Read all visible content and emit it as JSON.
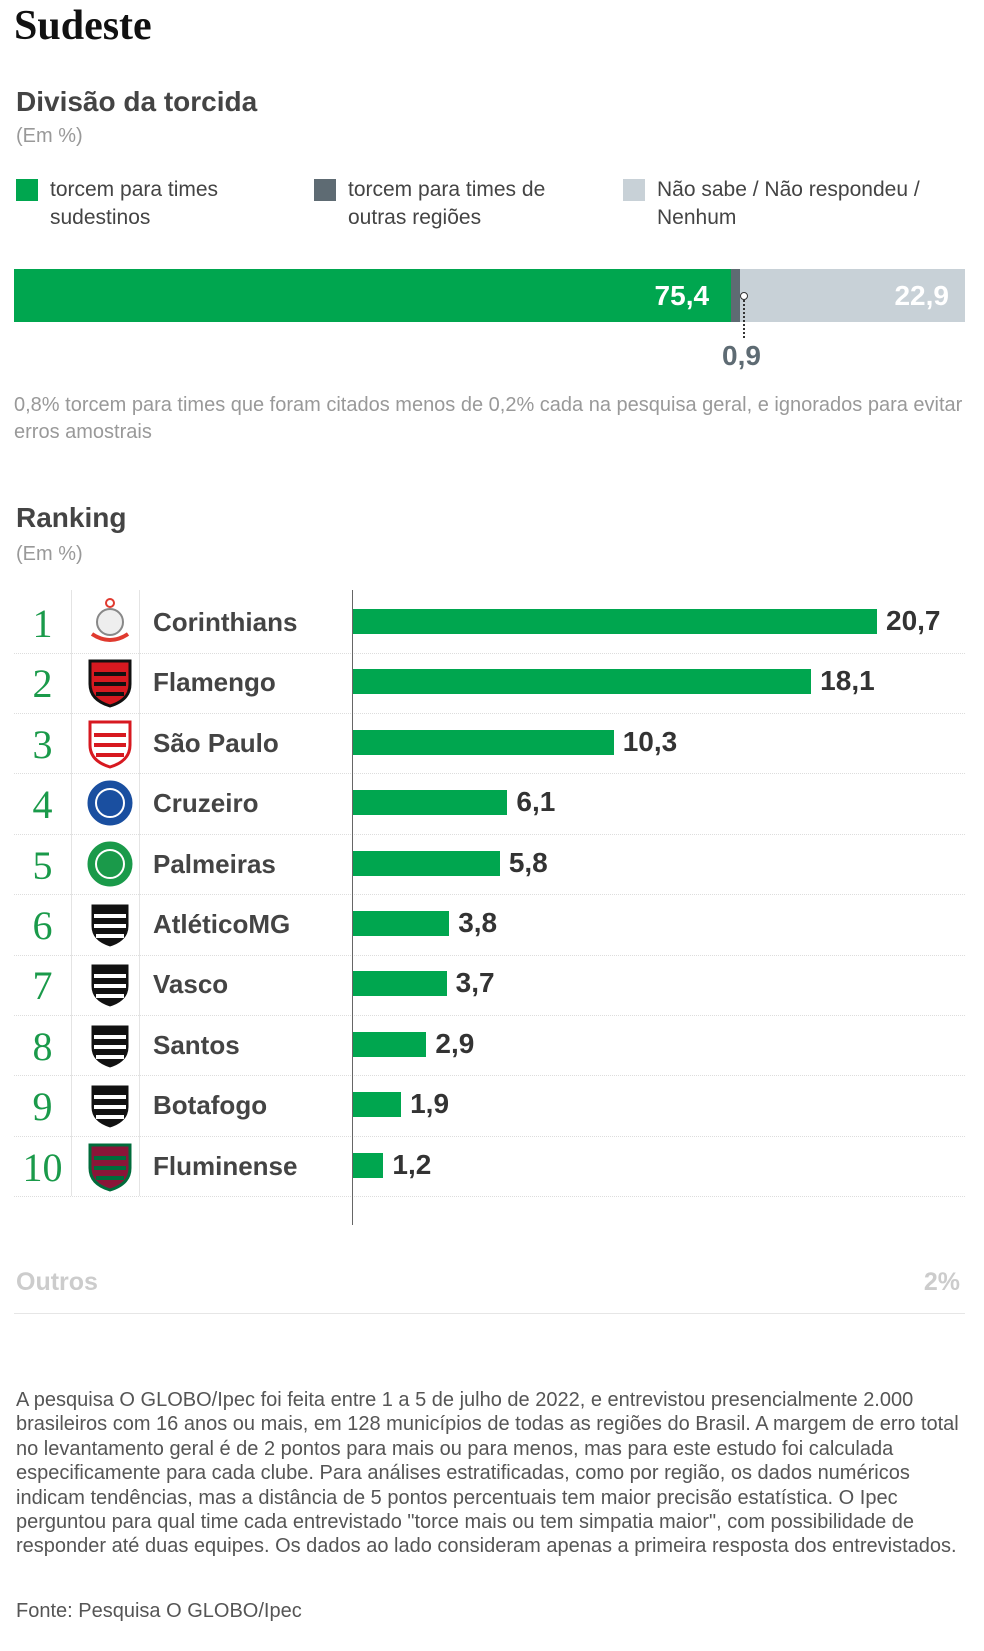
{
  "title": "Sudeste",
  "division": {
    "title": "Divisão da torcida",
    "unit": "(Em %)",
    "legend": [
      {
        "label": "torcem para times sudestinos",
        "color": "#00a64f"
      },
      {
        "label": "torcem para times de outras regiões",
        "color": "#5e6b73"
      },
      {
        "label": "Não sabe / Não respondeu / Nenhum",
        "color": "#c8d1d7"
      }
    ],
    "values_label": [
      "75,4",
      "0,9",
      "22,9"
    ],
    "note": "0,8% torcem para times que foram citados menos de 0,2% cada na pesquisa geral, e ignorados para evitar erros amostrais"
  },
  "ranking": {
    "title": "Ranking",
    "unit": "(Em %)",
    "others_label": "Outros",
    "others_value": "2%"
  },
  "chart_data": [
    {
      "type": "bar",
      "stacked": true,
      "title": "Divisão da torcida",
      "categories": [
        "torcem para times sudestinos",
        "torcem para times de outras regiões",
        "Não sabe / Não respondeu / Nenhum"
      ],
      "values": [
        75.4,
        0.9,
        22.9
      ],
      "unit": "%"
    },
    {
      "type": "bar",
      "orientation": "horizontal",
      "title": "Ranking",
      "unit": "%",
      "categories": [
        "Corinthians",
        "Flamengo",
        "São Paulo",
        "Cruzeiro",
        "Palmeiras",
        "AtléticoMG",
        "Vasco",
        "Santos",
        "Botafogo",
        "Fluminense"
      ],
      "ranks": [
        "1",
        "2",
        "3",
        "4",
        "5",
        "6",
        "7",
        "8",
        "9",
        "10"
      ],
      "values": [
        20.7,
        18.1,
        10.3,
        6.1,
        5.8,
        3.8,
        3.7,
        2.9,
        1.9,
        1.2
      ],
      "labels": [
        "20,7",
        "18,1",
        "10,3",
        "6,1",
        "5,8",
        "3,8",
        "3,7",
        "2,9",
        "1,9",
        "1,2"
      ]
    }
  ],
  "footer": "A pesquisa O GLOBO/Ipec foi feita entre 1 a 5 de julho de 2022, e entrevistou presencialmente 2.000 brasileiros com 16 anos ou mais, em 128 municípios de todas as regiões do Brasil. A margem de erro total no levantamento geral é de 2 pontos para mais ou para menos, mas para este estudo foi calculada especificamente para cada clube. Para análises estratificadas, como por região, os dados numéricos indicam tendências, mas a distância de 5 pontos percentuais tem maior precisão estatística. O Ipec perguntou para qual time cada entrevistado \"torce mais ou tem simpatia maior\", com possibilidade de responder até duas equipes. Os dados ao lado consideram apenas a primeira resposta dos entrevistados.",
  "source": "Fonte: Pesquisa O GLOBO/Ipec",
  "logo_colors": [
    [
      "#e03a2f",
      "#888"
    ],
    [
      "#d71920",
      "#111"
    ],
    [
      "#fff",
      "#d71920"
    ],
    [
      "#1a4fa0",
      "#fff"
    ],
    [
      "#1a9a4a",
      "#fff"
    ],
    [
      "#111",
      "#fff"
    ],
    [
      "#111",
      "#fff"
    ],
    [
      "#111",
      "#fff"
    ],
    [
      "#111",
      "#fff"
    ],
    [
      "#8a1538",
      "#006c3b"
    ]
  ]
}
